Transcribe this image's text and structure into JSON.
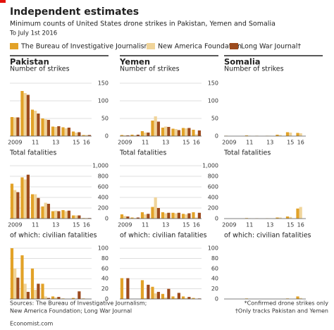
{
  "header": {
    "title": "Independent estimates",
    "subtitle": "Minimum counts of United States drone strikes in Pakistan, Yemen and Somalia",
    "date_note": "To July 1st 2016"
  },
  "legend": [
    {
      "name": "The Bureau of Investigative Journalism*",
      "color": "#e2a228"
    },
    {
      "name": "New America Foundation",
      "color": "#f0d49a"
    },
    {
      "name": "Long War Journal†",
      "color": "#9c4a1d"
    }
  ],
  "chart_data": [
    {
      "type": "bar",
      "title": "Pakistan",
      "label": "Number of strikes",
      "categories": [
        "2009",
        null,
        "11",
        null,
        "13",
        null,
        "15",
        "16"
      ],
      "series": [
        {
          "values": [
            54,
            128,
            75,
            50,
            27,
            25,
            13,
            3
          ]
        },
        {
          "values": [
            53,
            122,
            72,
            48,
            26,
            22,
            10,
            3
          ]
        },
        {
          "values": [
            53,
            117,
            64,
            46,
            28,
            24,
            11,
            3
          ]
        }
      ],
      "ylim": [
        0,
        150
      ],
      "yticks": [
        0,
        50,
        100,
        150
      ]
    },
    {
      "type": "bar",
      "title": "Yemen",
      "label": "Number of strikes",
      "categories": [
        "2009",
        null,
        "11",
        null,
        "13",
        null,
        "15",
        "16"
      ],
      "series": [
        {
          "values": [
            3,
            4,
            14,
            44,
            24,
            21,
            23,
            18
          ]
        },
        {
          "values": [
            2,
            2,
            10,
            56,
            27,
            20,
            22,
            5
          ]
        },
        {
          "values": [
            2,
            4,
            10,
            41,
            26,
            17,
            23,
            16
          ]
        }
      ],
      "ylim": [
        0,
        150
      ],
      "yticks": [
        0,
        50,
        100,
        150
      ]
    },
    {
      "type": "bar",
      "title": "Somalia",
      "label": "Number of strikes",
      "categories": [
        "2009",
        null,
        "11",
        null,
        "13",
        null,
        "15",
        "16"
      ],
      "series": [
        {
          "values": [
            1,
            0,
            2,
            1,
            1,
            4,
            11,
            9
          ]
        },
        {
          "values": [
            0,
            0,
            1,
            0,
            1,
            3,
            10,
            8
          ]
        },
        {
          "values": [
            null,
            null,
            null,
            null,
            null,
            null,
            null,
            null
          ]
        }
      ],
      "ylim": [
        0,
        150
      ]
    },
    {
      "type": "bar",
      "label": "Total fatalities",
      "categories": [
        "2009",
        null,
        "11",
        null,
        "13",
        null,
        "15",
        "16"
      ],
      "series": [
        {
          "values": [
            660,
            780,
            460,
            230,
            140,
            160,
            60,
            10
          ]
        },
        {
          "values": [
            540,
            740,
            460,
            300,
            150,
            140,
            60,
            10
          ]
        },
        {
          "values": [
            500,
            830,
            390,
            280,
            140,
            150,
            60,
            10
          ]
        }
      ],
      "ylim": [
        0,
        1000
      ],
      "yticks": [
        0,
        200,
        400,
        600,
        800,
        {
          "value": 1000,
          "label": "1,000"
        }
      ]
    },
    {
      "type": "bar",
      "label": "Total fatalities",
      "categories": [
        "2009",
        null,
        "11",
        null,
        "13",
        null,
        "15",
        "16"
      ],
      "series": [
        {
          "values": [
            80,
            20,
            120,
            220,
            120,
            110,
            90,
            120
          ]
        },
        {
          "values": [
            50,
            10,
            80,
            400,
            100,
            100,
            80,
            20
          ]
        },
        {
          "values": [
            40,
            20,
            90,
            200,
            110,
            110,
            100,
            110
          ]
        }
      ],
      "ylim": [
        0,
        1000
      ],
      "yticks": [
        0,
        200,
        400,
        600,
        800,
        {
          "value": 1000,
          "label": "1,000"
        }
      ]
    },
    {
      "type": "bar",
      "label": "Total fatalities",
      "categories": [
        "2009",
        null,
        "11",
        null,
        "13",
        null,
        "15",
        "16"
      ],
      "series": [
        {
          "values": [
            0,
            0,
            10,
            5,
            5,
            20,
            40,
            190
          ]
        },
        {
          "values": [
            0,
            0,
            5,
            0,
            5,
            20,
            30,
            220
          ]
        },
        {
          "values": [
            null,
            null,
            null,
            null,
            null,
            null,
            null,
            null
          ]
        }
      ],
      "ylim": [
        0,
        1000
      ]
    },
    {
      "type": "bar",
      "label": "of which: civilian fatalities",
      "series": [
        {
          "values": [
            100,
            86,
            60,
            30,
            5,
            1,
            2,
            1
          ]
        },
        {
          "values": [
            60,
            30,
            18,
            5,
            3,
            0,
            0,
            0
          ]
        },
        {
          "values": [
            42,
            14,
            30,
            2,
            4,
            0,
            15,
            0
          ]
        }
      ],
      "ylim": [
        0,
        100
      ],
      "yticks": [
        0,
        20,
        40,
        60,
        80,
        100
      ]
    },
    {
      "type": "bar",
      "label": "of which: civilian fatalities",
      "series": [
        {
          "values": [
            41,
            0,
            37,
            24,
            10,
            5,
            5,
            2
          ]
        },
        {
          "values": [
            0,
            0,
            2,
            11,
            3,
            2,
            2,
            0
          ]
        },
        {
          "values": [
            41,
            0,
            28,
            14,
            20,
            12,
            4,
            1
          ]
        }
      ],
      "ylim": [
        0,
        100
      ],
      "yticks": [
        0,
        20,
        40,
        60,
        80,
        100
      ]
    },
    {
      "type": "bar",
      "label": "of which: civilian fatalities",
      "series": [
        {
          "values": [
            0,
            0,
            1,
            0,
            0,
            0,
            1,
            5
          ]
        },
        {
          "values": [
            0,
            0,
            0,
            0,
            0,
            0,
            0,
            2
          ]
        },
        {
          "values": [
            null,
            null,
            null,
            null,
            null,
            null,
            null,
            null
          ]
        }
      ],
      "ylim": [
        0,
        100
      ]
    }
  ],
  "footer": {
    "sources": [
      "Sources: The Bureau of Investigative Journalism;",
      "New America Foundation; Long War Journal"
    ],
    "notes": [
      "*Confirmed drone strikes only",
      "†Only tracks Pakistan and Yemen"
    ],
    "credit": "Economist.com"
  }
}
